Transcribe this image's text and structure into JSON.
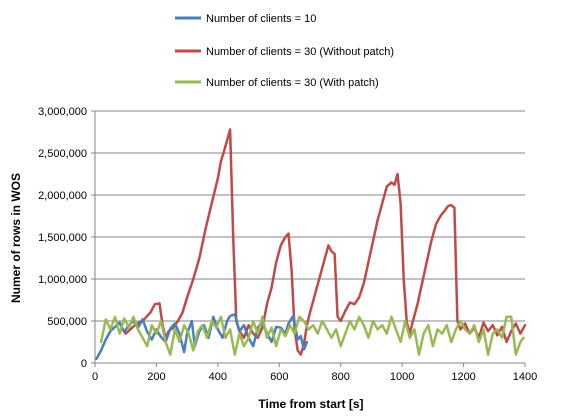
{
  "chart_data": {
    "type": "line",
    "xlabel": "Time from start [s]",
    "ylabel": "Numer of rows in WOS",
    "xlim": [
      0,
      1400
    ],
    "ylim": [
      0,
      3000000
    ],
    "xticks": [
      0,
      200,
      400,
      600,
      800,
      1000,
      1200,
      1400
    ],
    "yticks": [
      0,
      500000,
      1000000,
      1500000,
      2000000,
      2500000,
      3000000
    ],
    "xtick_labels": [
      "0",
      "200",
      "400",
      "600",
      "800",
      "1000",
      "1200",
      "1400"
    ],
    "ytick_labels": [
      "0",
      "500,000",
      "1,000,000",
      "1,500,000",
      "2,000,000",
      "2,500,000",
      "3,000,000"
    ],
    "grid": "horizontal",
    "legend_position": "top",
    "series": [
      {
        "name": "Number of clients = 10",
        "color": "#4a7ebb",
        "points": [
          [
            5,
            50000
          ],
          [
            20,
            150000
          ],
          [
            35,
            280000
          ],
          [
            50,
            380000
          ],
          [
            65,
            430000
          ],
          [
            80,
            480000
          ],
          [
            95,
            370000
          ],
          [
            110,
            450000
          ],
          [
            125,
            500000
          ],
          [
            140,
            420000
          ],
          [
            155,
            520000
          ],
          [
            170,
            370000
          ],
          [
            185,
            280000
          ],
          [
            200,
            400000
          ],
          [
            215,
            310000
          ],
          [
            230,
            250000
          ],
          [
            245,
            410000
          ],
          [
            260,
            470000
          ],
          [
            275,
            350000
          ],
          [
            290,
            130000
          ],
          [
            300,
            350000
          ],
          [
            315,
            500000
          ],
          [
            325,
            200000
          ],
          [
            340,
            380000
          ],
          [
            355,
            450000
          ],
          [
            370,
            300000
          ],
          [
            385,
            550000
          ],
          [
            400,
            400000
          ],
          [
            415,
            300000
          ],
          [
            430,
            500000
          ],
          [
            440,
            560000
          ],
          [
            455,
            580000
          ],
          [
            470,
            380000
          ],
          [
            485,
            450000
          ],
          [
            500,
            300000
          ],
          [
            515,
            200000
          ],
          [
            530,
            420000
          ],
          [
            545,
            490000
          ],
          [
            560,
            350000
          ],
          [
            575,
            250000
          ],
          [
            590,
            430000
          ],
          [
            605,
            420000
          ],
          [
            620,
            350000
          ],
          [
            630,
            470000
          ],
          [
            645,
            560000
          ],
          [
            660,
            280000
          ],
          [
            670,
            320000
          ],
          [
            680,
            160000
          ],
          [
            690,
            250000
          ]
        ]
      },
      {
        "name": "Number of clients = 30 (Without patch)",
        "color": "#be4b48",
        "points": [
          [
            100,
            350000
          ],
          [
            130,
            450000
          ],
          [
            160,
            520000
          ],
          [
            180,
            600000
          ],
          [
            195,
            700000
          ],
          [
            210,
            710000
          ],
          [
            220,
            450000
          ],
          [
            230,
            300000
          ],
          [
            240,
            380000
          ],
          [
            255,
            420000
          ],
          [
            270,
            500000
          ],
          [
            285,
            600000
          ],
          [
            300,
            780000
          ],
          [
            320,
            1000000
          ],
          [
            340,
            1250000
          ],
          [
            360,
            1600000
          ],
          [
            380,
            1900000
          ],
          [
            400,
            2200000
          ],
          [
            410,
            2400000
          ],
          [
            420,
            2520000
          ],
          [
            430,
            2650000
          ],
          [
            440,
            2780000
          ],
          [
            450,
            1500000
          ],
          [
            460,
            500000
          ],
          [
            470,
            380000
          ],
          [
            485,
            300000
          ],
          [
            500,
            450000
          ],
          [
            515,
            350000
          ],
          [
            530,
            300000
          ],
          [
            545,
            420000
          ],
          [
            560,
            700000
          ],
          [
            575,
            900000
          ],
          [
            590,
            1200000
          ],
          [
            605,
            1400000
          ],
          [
            620,
            1500000
          ],
          [
            630,
            1540000
          ],
          [
            640,
            1100000
          ],
          [
            650,
            400000
          ],
          [
            660,
            150000
          ],
          [
            670,
            100000
          ],
          [
            680,
            220000
          ],
          [
            690,
            450000
          ],
          [
            700,
            600000
          ],
          [
            715,
            800000
          ],
          [
            730,
            1000000
          ],
          [
            745,
            1200000
          ],
          [
            760,
            1400000
          ],
          [
            770,
            1330000
          ],
          [
            780,
            1300000
          ],
          [
            790,
            550000
          ],
          [
            800,
            500000
          ],
          [
            815,
            620000
          ],
          [
            830,
            720000
          ],
          [
            845,
            700000
          ],
          [
            860,
            780000
          ],
          [
            875,
            950000
          ],
          [
            890,
            1200000
          ],
          [
            905,
            1450000
          ],
          [
            920,
            1700000
          ],
          [
            935,
            1900000
          ],
          [
            950,
            2100000
          ],
          [
            965,
            2150000
          ],
          [
            975,
            2120000
          ],
          [
            985,
            2250000
          ],
          [
            995,
            1900000
          ],
          [
            1005,
            1000000
          ],
          [
            1015,
            480000
          ],
          [
            1025,
            350000
          ],
          [
            1035,
            500000
          ],
          [
            1050,
            700000
          ],
          [
            1065,
            950000
          ],
          [
            1080,
            1200000
          ],
          [
            1095,
            1450000
          ],
          [
            1110,
            1650000
          ],
          [
            1125,
            1750000
          ],
          [
            1140,
            1820000
          ],
          [
            1150,
            1870000
          ],
          [
            1160,
            1880000
          ],
          [
            1170,
            1850000
          ],
          [
            1180,
            500000
          ],
          [
            1190,
            400000
          ],
          [
            1205,
            470000
          ],
          [
            1220,
            350000
          ],
          [
            1235,
            420000
          ],
          [
            1250,
            300000
          ],
          [
            1265,
            480000
          ],
          [
            1280,
            380000
          ],
          [
            1295,
            450000
          ],
          [
            1310,
            330000
          ],
          [
            1325,
            430000
          ],
          [
            1340,
            250000
          ],
          [
            1355,
            380000
          ],
          [
            1370,
            470000
          ],
          [
            1385,
            350000
          ],
          [
            1400,
            450000
          ]
        ]
      },
      {
        "name": "Number of clients = 30 (With patch)",
        "color": "#98b954",
        "points": [
          [
            20,
            250000
          ],
          [
            35,
            520000
          ],
          [
            50,
            400000
          ],
          [
            65,
            550000
          ],
          [
            80,
            350000
          ],
          [
            95,
            530000
          ],
          [
            110,
            420000
          ],
          [
            125,
            550000
          ],
          [
            140,
            400000
          ],
          [
            155,
            300000
          ],
          [
            170,
            200000
          ],
          [
            185,
            450000
          ],
          [
            200,
            350000
          ],
          [
            215,
            500000
          ],
          [
            230,
            250000
          ],
          [
            245,
            100000
          ],
          [
            260,
            400000
          ],
          [
            275,
            250000
          ],
          [
            290,
            450000
          ],
          [
            305,
            350000
          ],
          [
            320,
            150000
          ],
          [
            335,
            380000
          ],
          [
            350,
            450000
          ],
          [
            365,
            300000
          ],
          [
            380,
            500000
          ],
          [
            395,
            420000
          ],
          [
            410,
            550000
          ],
          [
            425,
            300000
          ],
          [
            440,
            400000
          ],
          [
            455,
            100000
          ],
          [
            470,
            350000
          ],
          [
            485,
            200000
          ],
          [
            500,
            300000
          ],
          [
            515,
            500000
          ],
          [
            530,
            350000
          ],
          [
            545,
            550000
          ],
          [
            560,
            300000
          ],
          [
            575,
            420000
          ],
          [
            590,
            200000
          ],
          [
            605,
            400000
          ],
          [
            620,
            320000
          ],
          [
            635,
            450000
          ],
          [
            650,
            350000
          ],
          [
            665,
            550000
          ],
          [
            680,
            500000
          ],
          [
            695,
            400000
          ],
          [
            710,
            450000
          ],
          [
            725,
            350000
          ],
          [
            740,
            500000
          ],
          [
            755,
            400000
          ],
          [
            770,
            300000
          ],
          [
            785,
            400000
          ],
          [
            800,
            200000
          ],
          [
            815,
            350000
          ],
          [
            830,
            500000
          ],
          [
            845,
            400000
          ],
          [
            860,
            550000
          ],
          [
            875,
            450000
          ],
          [
            890,
            300000
          ],
          [
            905,
            500000
          ],
          [
            920,
            400000
          ],
          [
            935,
            450000
          ],
          [
            950,
            350000
          ],
          [
            965,
            550000
          ],
          [
            980,
            400000
          ],
          [
            995,
            250000
          ],
          [
            1010,
            500000
          ],
          [
            1025,
            300000
          ],
          [
            1040,
            400000
          ],
          [
            1055,
            100000
          ],
          [
            1070,
            350000
          ],
          [
            1085,
            450000
          ],
          [
            1100,
            200000
          ],
          [
            1115,
            400000
          ],
          [
            1130,
            350000
          ],
          [
            1145,
            450000
          ],
          [
            1160,
            250000
          ],
          [
            1175,
            400000
          ],
          [
            1190,
            500000
          ],
          [
            1205,
            400000
          ],
          [
            1220,
            350000
          ],
          [
            1235,
            450000
          ],
          [
            1250,
            250000
          ],
          [
            1265,
            400000
          ],
          [
            1280,
            100000
          ],
          [
            1295,
            350000
          ],
          [
            1310,
            400000
          ],
          [
            1325,
            300000
          ],
          [
            1340,
            550000
          ],
          [
            1355,
            550000
          ],
          [
            1370,
            100000
          ],
          [
            1385,
            250000
          ],
          [
            1395,
            300000
          ]
        ]
      }
    ]
  }
}
